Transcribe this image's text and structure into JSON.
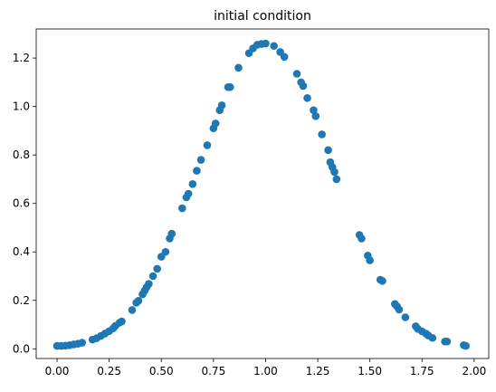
{
  "chart_data": {
    "type": "scatter",
    "title": "initial condition",
    "xlabel": "",
    "ylabel": "",
    "xlim": [
      -0.1,
      2.07
    ],
    "ylim": [
      -0.04,
      1.32
    ],
    "grid": false,
    "marker_color": "#1f77b4",
    "x_ticks": [
      0.0,
      0.25,
      0.5,
      0.75,
      1.0,
      1.25,
      1.5,
      1.75,
      2.0
    ],
    "x_tick_labels": [
      "0.00",
      "0.25",
      "0.50",
      "0.75",
      "1.00",
      "1.25",
      "1.50",
      "1.75",
      "2.00"
    ],
    "y_ticks": [
      0.0,
      0.2,
      0.4,
      0.6,
      0.8,
      1.0,
      1.2
    ],
    "y_tick_labels": [
      "0.0",
      "0.2",
      "0.4",
      "0.6",
      "0.8",
      "1.0",
      "1.2"
    ],
    "points": [
      [
        0.0,
        0.012
      ],
      [
        0.02,
        0.012
      ],
      [
        0.04,
        0.013
      ],
      [
        0.06,
        0.015
      ],
      [
        0.08,
        0.018
      ],
      [
        0.1,
        0.021
      ],
      [
        0.12,
        0.025
      ],
      [
        0.17,
        0.038
      ],
      [
        0.19,
        0.044
      ],
      [
        0.21,
        0.053
      ],
      [
        0.23,
        0.063
      ],
      [
        0.25,
        0.073
      ],
      [
        0.27,
        0.085
      ],
      [
        0.28,
        0.095
      ],
      [
        0.3,
        0.108
      ],
      [
        0.31,
        0.113
      ],
      [
        0.36,
        0.16
      ],
      [
        0.38,
        0.19
      ],
      [
        0.39,
        0.198
      ],
      [
        0.41,
        0.225
      ],
      [
        0.42,
        0.24
      ],
      [
        0.43,
        0.255
      ],
      [
        0.44,
        0.268
      ],
      [
        0.46,
        0.3
      ],
      [
        0.48,
        0.33
      ],
      [
        0.5,
        0.38
      ],
      [
        0.52,
        0.4
      ],
      [
        0.54,
        0.455
      ],
      [
        0.55,
        0.475
      ],
      [
        0.6,
        0.58
      ],
      [
        0.62,
        0.625
      ],
      [
        0.63,
        0.64
      ],
      [
        0.65,
        0.68
      ],
      [
        0.67,
        0.735
      ],
      [
        0.69,
        0.78
      ],
      [
        0.72,
        0.84
      ],
      [
        0.75,
        0.91
      ],
      [
        0.76,
        0.93
      ],
      [
        0.78,
        0.985
      ],
      [
        0.79,
        1.005
      ],
      [
        0.82,
        1.08
      ],
      [
        0.83,
        1.08
      ],
      [
        0.87,
        1.16
      ],
      [
        0.92,
        1.22
      ],
      [
        0.94,
        1.24
      ],
      [
        0.96,
        1.255
      ],
      [
        0.98,
        1.258
      ],
      [
        1.0,
        1.26
      ],
      [
        1.04,
        1.25
      ],
      [
        1.07,
        1.225
      ],
      [
        1.09,
        1.205
      ],
      [
        1.15,
        1.135
      ],
      [
        1.17,
        1.1
      ],
      [
        1.18,
        1.085
      ],
      [
        1.2,
        1.035
      ],
      [
        1.23,
        0.985
      ],
      [
        1.24,
        0.96
      ],
      [
        1.27,
        0.885
      ],
      [
        1.3,
        0.82
      ],
      [
        1.31,
        0.77
      ],
      [
        1.32,
        0.75
      ],
      [
        1.33,
        0.73
      ],
      [
        1.34,
        0.7
      ],
      [
        1.45,
        0.47
      ],
      [
        1.46,
        0.455
      ],
      [
        1.49,
        0.385
      ],
      [
        1.5,
        0.365
      ],
      [
        1.55,
        0.285
      ],
      [
        1.56,
        0.28
      ],
      [
        1.62,
        0.185
      ],
      [
        1.63,
        0.175
      ],
      [
        1.64,
        0.162
      ],
      [
        1.67,
        0.13
      ],
      [
        1.72,
        0.093
      ],
      [
        1.73,
        0.082
      ],
      [
        1.75,
        0.072
      ],
      [
        1.77,
        0.062
      ],
      [
        1.78,
        0.055
      ],
      [
        1.8,
        0.045
      ],
      [
        1.86,
        0.03
      ],
      [
        1.87,
        0.03
      ],
      [
        1.95,
        0.015
      ],
      [
        1.96,
        0.012
      ]
    ]
  }
}
